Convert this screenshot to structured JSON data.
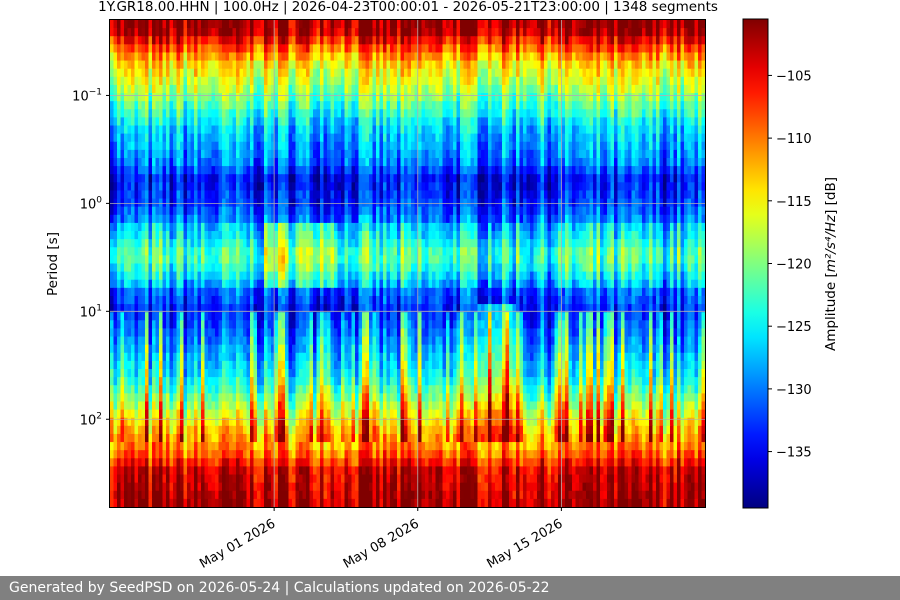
{
  "footer": {
    "text": "Generated by SeedPSD on 2026-05-24 | Calculations updated on 2026-05-22"
  },
  "chart_data": {
    "type": "heatmap",
    "title": "1Y.GR18.00.HHN | 100.0Hz | 2026-04-23T00:00:01 - 2026-05-21T23:00:00 | 1348 segments",
    "xlabel": "",
    "ylabel": "Period [s]",
    "x_scale": "date",
    "xlim": [
      "2026-04-23",
      "2026-05-22"
    ],
    "x_ticks": [
      {
        "value": "2026-05-01",
        "label": "May 01 2026"
      },
      {
        "value": "2026-05-08",
        "label": "May 08 2026"
      },
      {
        "value": "2026-05-15",
        "label": "May 15 2026"
      }
    ],
    "y_scale": "log",
    "y_inverted": true,
    "ylim": [
      0.02,
      650
    ],
    "y_ticks": [
      {
        "value": 0.1,
        "base": "10",
        "exp": "−1"
      },
      {
        "value": 1,
        "base": "10",
        "exp": "0"
      },
      {
        "value": 10,
        "base": "10",
        "exp": "1"
      },
      {
        "value": 100,
        "base": "10",
        "exp": "2"
      }
    ],
    "grid": true,
    "colormap": "jet",
    "colorbar": {
      "label_main": "Amplitude [",
      "label_unit": "m²/s⁴/Hz",
      "label_tail": "] [dB]",
      "range_db": [
        -139.5,
        -100.5
      ],
      "ticks": [
        -105,
        -110,
        -115,
        -120,
        -125,
        -130,
        -135
      ],
      "tick_labels": [
        "−105",
        "−110",
        "−115",
        "−120",
        "−125",
        "−130",
        "−135"
      ]
    },
    "amplitude_profile": {
      "periods_s": [
        0.025,
        0.035,
        0.05,
        0.1,
        0.2,
        0.4,
        0.6,
        1,
        2,
        3,
        4,
        6,
        10,
        20,
        40,
        70,
        120,
        200,
        300,
        650
      ],
      "median_db": [
        -102,
        -108,
        -114,
        -120,
        -127,
        -130,
        -135,
        -133,
        -128,
        -124,
        -126,
        -131,
        -134,
        -130,
        -126,
        -120,
        -114,
        -110,
        -104,
        -102
      ]
    }
  }
}
